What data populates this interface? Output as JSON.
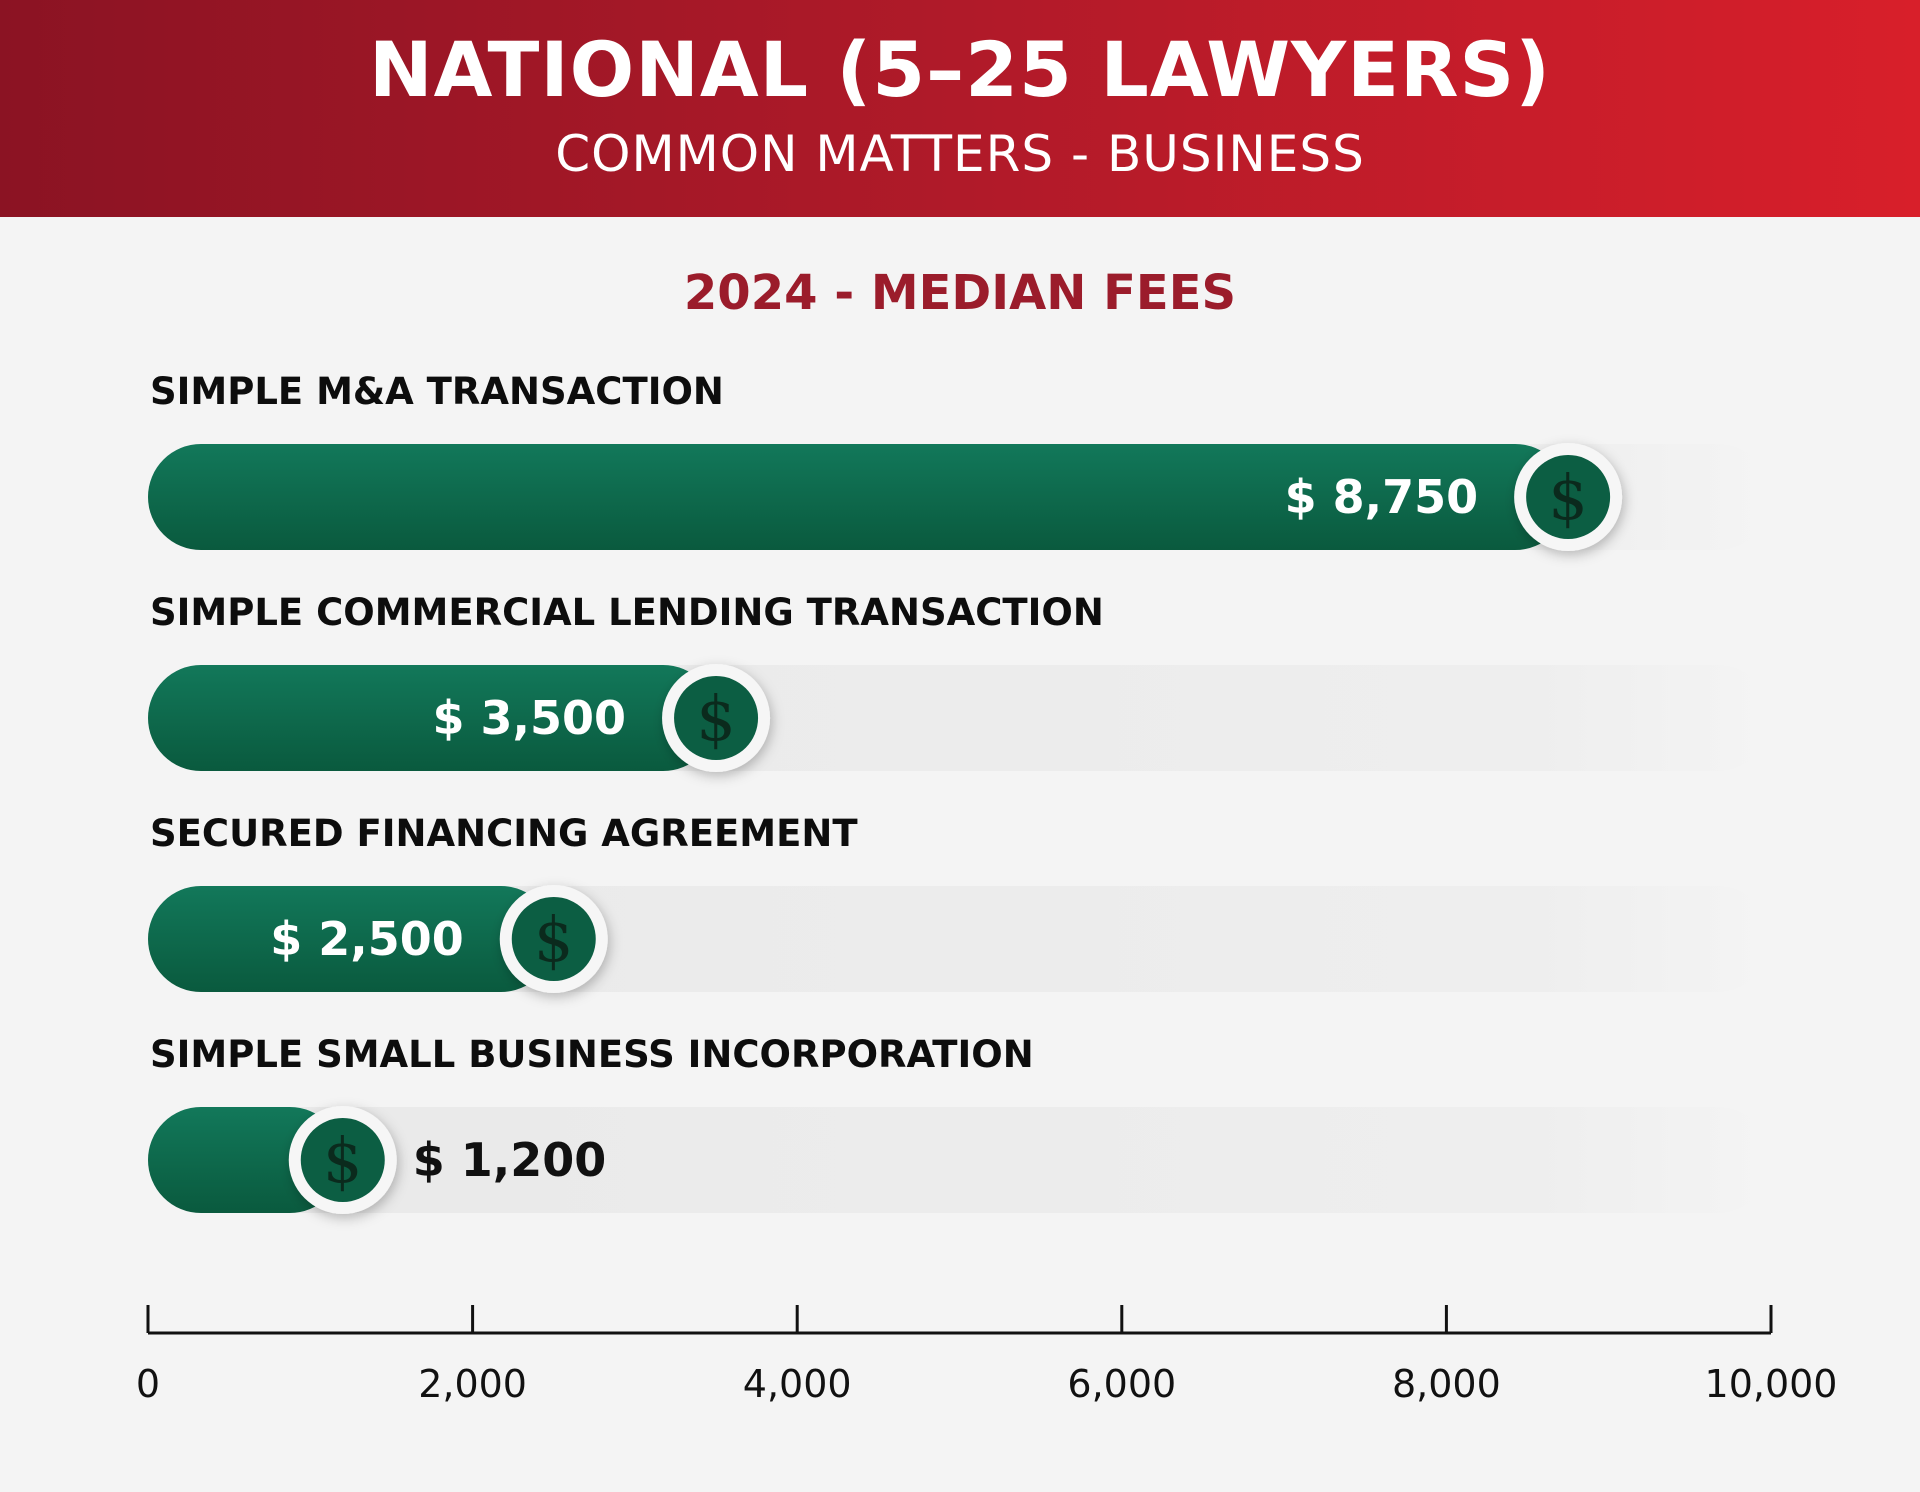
{
  "header": {
    "title": "NATIONAL (5–25 LAWYERS)",
    "subtitle": "COMMON MATTERS - BUSINESS"
  },
  "chart_data": {
    "type": "bar",
    "orientation": "horizontal",
    "title": "2024 - MEDIAN FEES",
    "categories": [
      "SIMPLE M&A TRANSACTION",
      "SIMPLE COMMERCIAL LENDING TRANSACTION",
      "SECURED FINANCING AGREEMENT",
      "SIMPLE SMALL BUSINESS INCORPORATION"
    ],
    "values": [
      8750,
      3500,
      2500,
      1200
    ],
    "value_labels": [
      "$ 8,750",
      "$ 3,500",
      "$ 2,500",
      "$ 1,200"
    ],
    "xlim": [
      0,
      10000
    ],
    "xticks": [
      0,
      2000,
      4000,
      6000,
      8000,
      10000
    ],
    "xtick_labels": [
      "0",
      "2,000",
      "4,000",
      "6,000",
      "8,000",
      "10,000"
    ],
    "grid": false,
    "legend": "none",
    "marker_icon": "dollar-icon",
    "marker_glyph": "$",
    "colors": {
      "bar_start": "#1a8363",
      "bar_end": "#0b5a3f",
      "track": "#ededed",
      "marker": "#0c5e43",
      "header_left": "#8b1323",
      "header_right": "#d81f2a"
    }
  }
}
